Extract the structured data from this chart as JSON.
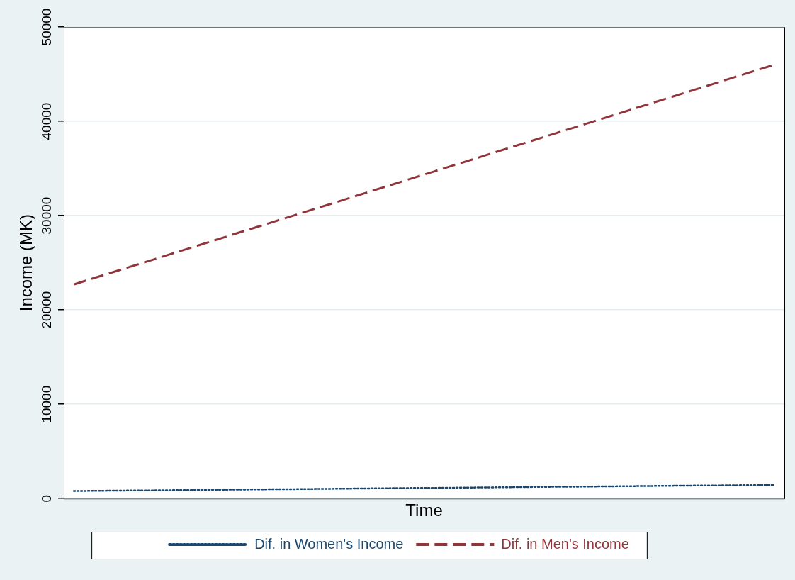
{
  "chart_data": {
    "type": "line",
    "xlabel": "Time",
    "ylabel": "Income (MK)",
    "categories": [
      null,
      null,
      null,
      null,
      null,
      null,
      null,
      null,
      null,
      null,
      null,
      null,
      null,
      null,
      null,
      null,
      null,
      null,
      null,
      null,
      null,
      null,
      null,
      null,
      null,
      null,
      null,
      null,
      null,
      null,
      null,
      null,
      null,
      null,
      null,
      null
    ],
    "series": [
      {
        "name": "Dif. in Women's Income",
        "color": "#1a476f",
        "line_style": "dotted",
        "values": [
          800,
          820,
          840,
          860,
          870,
          890,
          910,
          930,
          950,
          970,
          990,
          1000,
          1020,
          1040,
          1060,
          1080,
          1100,
          1120,
          1130,
          1150,
          1170,
          1190,
          1210,
          1230,
          1250,
          1260,
          1280,
          1300,
          1320,
          1340,
          1360,
          1380,
          1390,
          1410,
          1430,
          1450
        ]
      },
      {
        "name": "Dif. in Men's Income",
        "color": "#90353b",
        "line_style": "dashed",
        "values": [
          22700,
          23370,
          24030,
          24700,
          25360,
          26030,
          26690,
          27360,
          28030,
          28690,
          29360,
          30020,
          30690,
          31350,
          32020,
          32690,
          33350,
          34020,
          34680,
          35350,
          36010,
          36680,
          37350,
          38010,
          38680,
          39340,
          40010,
          40670,
          41340,
          42010,
          42670,
          43340,
          44000,
          44670,
          45330,
          46000
        ]
      }
    ],
    "ylim": [
      0,
      50000
    ],
    "yticks": [
      0,
      10000,
      20000,
      30000,
      40000,
      50000
    ],
    "grid": "y",
    "legend": "bottom",
    "tick_labels": "y",
    "marker": "none"
  }
}
